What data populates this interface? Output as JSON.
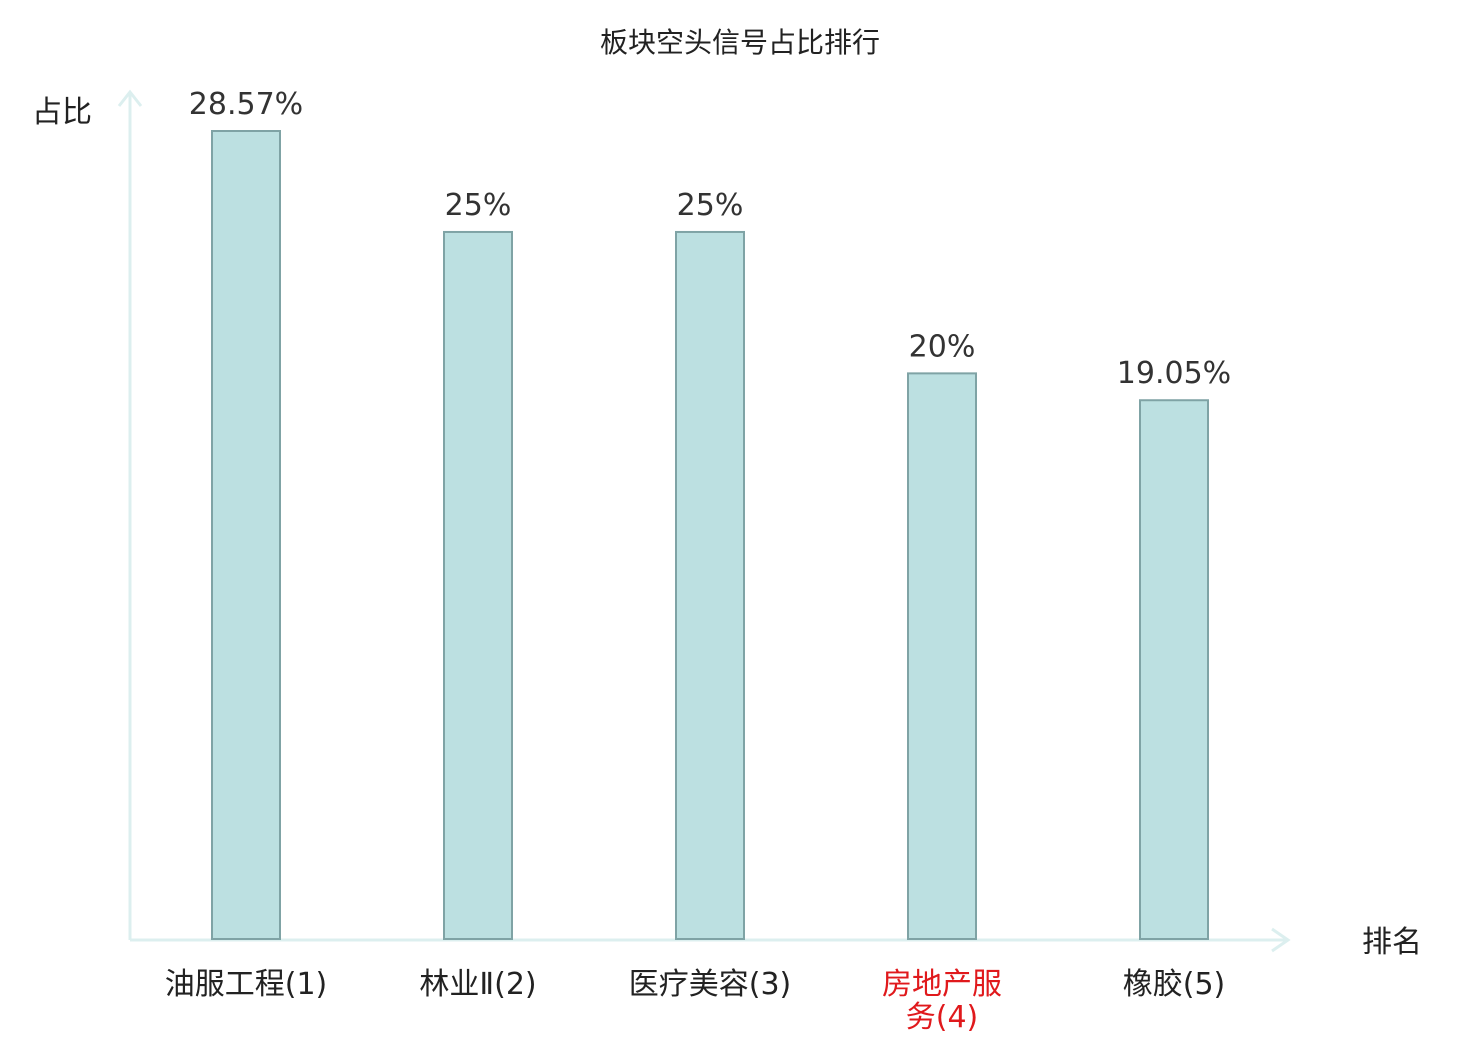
{
  "chart_data": {
    "type": "bar",
    "title": "板块空头信号占比排行",
    "ylabel": "占比",
    "xlabel": "排名",
    "categories": [
      {
        "lines": [
          "油服工程(1)"
        ],
        "highlight": false
      },
      {
        "lines": [
          "林业Ⅱ(2)"
        ],
        "highlight": false
      },
      {
        "lines": [
          "医疗美容(3)"
        ],
        "highlight": false
      },
      {
        "lines": [
          "房地产服",
          "务(4)"
        ],
        "highlight": true
      },
      {
        "lines": [
          "橡胶(5)"
        ],
        "highlight": false
      }
    ],
    "values": [
      28.57,
      25,
      25,
      20,
      19.05
    ],
    "value_labels": [
      "28.57%",
      "25%",
      "25%",
      "20%",
      "19.05%"
    ],
    "ylim": [
      0,
      28.57
    ],
    "grid": false,
    "legend": "none"
  },
  "colors": {
    "bar_fill": "#bce0e1",
    "bar_stroke": "#7fa3a5",
    "axis": "#dcefef",
    "label_default": "#222222",
    "label_highlight": "#e0191c",
    "value_text": "#333333"
  }
}
